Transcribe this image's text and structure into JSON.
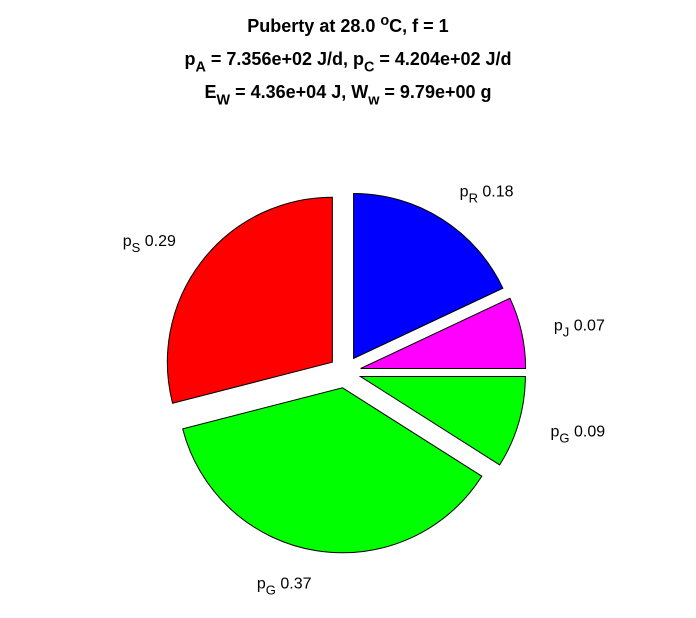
{
  "chart_data": {
    "type": "pie",
    "title_lines": [
      [
        {
          "text": "Puberty at 28.0 "
        },
        {
          "sup": "o"
        },
        {
          "text": "C, f = 1"
        }
      ],
      [
        {
          "text": "p"
        },
        {
          "sub": "A"
        },
        {
          "text": " = 7.356e+02 J/d,  p"
        },
        {
          "sub": "C"
        },
        {
          "text": " = 4.204e+02 J/d"
        }
      ],
      [
        {
          "text": "E"
        },
        {
          "sub": "W"
        },
        {
          "text": " = 4.36e+04 J, W"
        },
        {
          "sub": "w"
        },
        {
          "text": " = 9.79e+00 g"
        }
      ]
    ],
    "categories": [
      {
        "text": "p",
        "sub": "R"
      },
      {
        "text": "p",
        "sub": "J"
      },
      {
        "text": "p",
        "sub": "G"
      },
      {
        "text": "p",
        "sub": "G"
      },
      {
        "text": "p",
        "sub": "S"
      }
    ],
    "values": [
      0.18,
      0.07,
      0.09,
      0.37,
      0.29
    ],
    "colors": [
      "#0000ff",
      "#ff00ff",
      "#00ff00",
      "#00ff00",
      "#ff0000"
    ],
    "explode": true
  }
}
